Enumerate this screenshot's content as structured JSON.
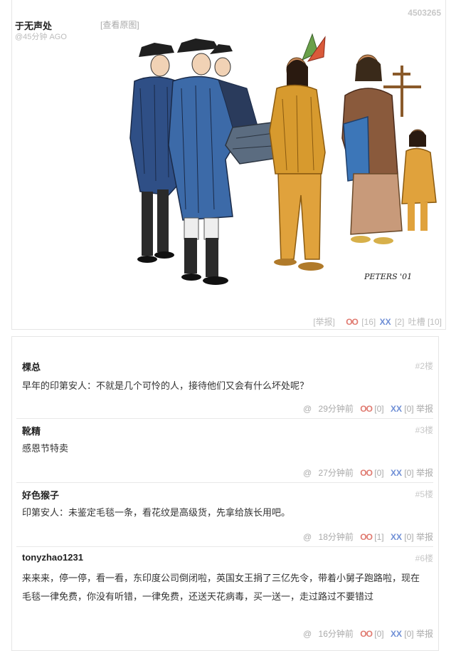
{
  "post": {
    "id": "4503265",
    "author": "于无声处",
    "time": "@45分钟 AGO",
    "view_original": "[查看原图]",
    "report": "[举报]",
    "oo_label": "OO",
    "oo_count": "[16]",
    "xx_label": "XX",
    "xx_count": "[2]",
    "tucao": "吐槽 [10]"
  },
  "comments": [
    {
      "author": "棵总",
      "floor": "#2楼",
      "text": "早年的印第安人：不就是几个可怜的人，接待他们又会有什么坏处呢？",
      "faint": "       ",
      "at": "@",
      "time": "29分钟前",
      "oo": "OO",
      "oo_count": "[0]",
      "xx": "XX",
      "xx_count": "[0]",
      "report": "举报"
    },
    {
      "author": "靴精",
      "floor": "#3楼",
      "text": "感恩节特卖",
      "faint": "       ",
      "at": "@",
      "time": "27分钟前",
      "oo": "OO",
      "oo_count": "[0]",
      "xx": "XX",
      "xx_count": "[0]",
      "report": "举报"
    },
    {
      "author": "好色猴子",
      "floor": "#5楼",
      "text": "印第安人：未鉴定毛毯一条，看花纹是高级货，先拿给族长用吧。",
      "faint": "       ",
      "at": "@",
      "time": "18分钟前",
      "oo": "OO",
      "oo_count": "[1]",
      "xx": "XX",
      "xx_count": "[0]",
      "report": "举报"
    },
    {
      "author": "tonyzhao1231",
      "floor": "#6楼",
      "text": "来来来，停一停，看一看，东印度公司倒闭啦，英国女王捐了三亿先令，带着小舅子跑路啦，现在毛毯一律免费，你没有听错，一律免费，还送天花病毒，买一送一，走过路过不要错过",
      "faint": "       ",
      "at": "@",
      "time": "16分钟前",
      "oo": "OO",
      "oo_count": "[0]",
      "xx": "XX",
      "xx_count": "[0]",
      "report": "举报"
    }
  ],
  "artwork": {
    "signature": "PETERS '01",
    "colors": {
      "coat_blue": "#2f4f86",
      "buckskin": "#d79a2e",
      "tricorn": "#1f1f1f",
      "dress_brown": "#8a5a3c",
      "blanket_blue": "#3c76b8",
      "child_orange": "#e0a23c"
    }
  }
}
